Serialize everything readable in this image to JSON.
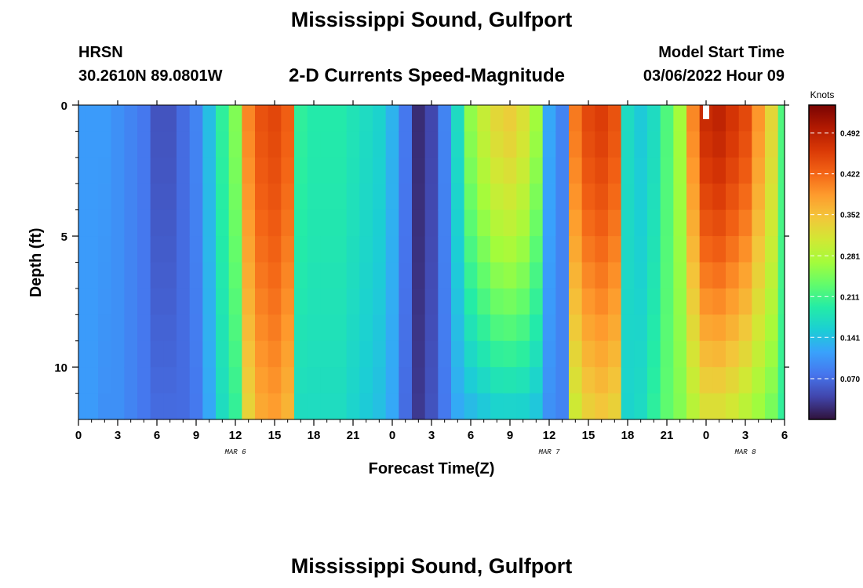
{
  "header": {
    "title": "Mississippi Sound, Gulfport",
    "station": "HRSN",
    "coords": "30.2610N  89.0801W",
    "subtitle": "2-D Currents Speed-Magnitude",
    "start_label": "Model Start Time",
    "start_value": "03/06/2022 Hour 09"
  },
  "footer": {
    "title": "Mississippi Sound, Gulfport"
  },
  "chart_data": {
    "type": "heatmap",
    "xlabel": "Forecast Time(Z)",
    "ylabel": "Depth (ft)",
    "xlim": [
      0,
      54
    ],
    "ylim": [
      12,
      0
    ],
    "x_ticks": [
      0,
      3,
      6,
      9,
      12,
      15,
      18,
      21,
      24,
      27,
      30,
      33,
      36,
      39,
      42,
      45,
      48,
      51,
      54
    ],
    "x_tick_labels": [
      "0",
      "3",
      "6",
      "9",
      "12",
      "15",
      "18",
      "21",
      "0",
      "3",
      "6",
      "9",
      "12",
      "15",
      "18",
      "21",
      "0",
      "3",
      "6"
    ],
    "y_ticks": [
      0,
      5,
      10
    ],
    "y_tick_labels": [
      "0",
      "5",
      "10"
    ],
    "date_labels": [
      {
        "x": 12,
        "label": "MAR 6"
      },
      {
        "x": 36,
        "label": "MAR 7"
      },
      {
        "x": 51,
        "label": "MAR 8"
      }
    ],
    "marker_x": 48,
    "colorbar": {
      "label": "Knots",
      "min": 0.0,
      "max": 0.54,
      "ticks": [
        0.07,
        0.141,
        0.211,
        0.281,
        0.352,
        0.422,
        0.492
      ],
      "tick_labels": [
        "0.070",
        "0.141",
        "0.211",
        "0.281",
        "0.352",
        "0.422",
        "0.492"
      ],
      "colors": [
        "#30123b",
        "#4145ab",
        "#4675ed",
        "#39a2fc",
        "#1bcfd4",
        "#24eca6",
        "#61fc6c",
        "#a4fc3b",
        "#d1e834",
        "#f3c63a",
        "#fe9b2d",
        "#f36315",
        "#d93806",
        "#b11901",
        "#7a0402"
      ]
    },
    "speed_profile": {
      "times": [
        0,
        1,
        2,
        3,
        4,
        5,
        6,
        7,
        8,
        9,
        10,
        11,
        12,
        13,
        14,
        15,
        16,
        17,
        18,
        19,
        20,
        21,
        22,
        23,
        24,
        25,
        26,
        27,
        28,
        29,
        30,
        31,
        32,
        33,
        34,
        35,
        36,
        37,
        38,
        39,
        40,
        41,
        42,
        43,
        44,
        45,
        46,
        47,
        48,
        49,
        50,
        51,
        52,
        53,
        54
      ],
      "surface_speed": [
        0.11,
        0.11,
        0.11,
        0.1,
        0.09,
        0.08,
        0.05,
        0.05,
        0.07,
        0.09,
        0.14,
        0.2,
        0.25,
        0.4,
        0.44,
        0.45,
        0.43,
        0.2,
        0.19,
        0.19,
        0.19,
        0.18,
        0.17,
        0.16,
        0.13,
        0.08,
        0.02,
        0.04,
        0.09,
        0.17,
        0.26,
        0.3,
        0.33,
        0.34,
        0.32,
        0.27,
        0.12,
        0.09,
        0.41,
        0.45,
        0.46,
        0.44,
        0.17,
        0.15,
        0.17,
        0.22,
        0.27,
        0.4,
        0.48,
        0.49,
        0.47,
        0.45,
        0.39,
        0.33,
        0.22
      ],
      "bottom_speed": [
        0.11,
        0.11,
        0.1,
        0.1,
        0.09,
        0.08,
        0.07,
        0.07,
        0.07,
        0.08,
        0.12,
        0.17,
        0.2,
        0.33,
        0.37,
        0.38,
        0.36,
        0.17,
        0.17,
        0.17,
        0.17,
        0.16,
        0.15,
        0.14,
        0.12,
        0.07,
        0.03,
        0.05,
        0.08,
        0.12,
        0.13,
        0.14,
        0.15,
        0.15,
        0.15,
        0.14,
        0.1,
        0.09,
        0.3,
        0.33,
        0.34,
        0.33,
        0.16,
        0.17,
        0.2,
        0.23,
        0.25,
        0.28,
        0.31,
        0.31,
        0.3,
        0.28,
        0.26,
        0.24,
        0.2
      ]
    }
  }
}
